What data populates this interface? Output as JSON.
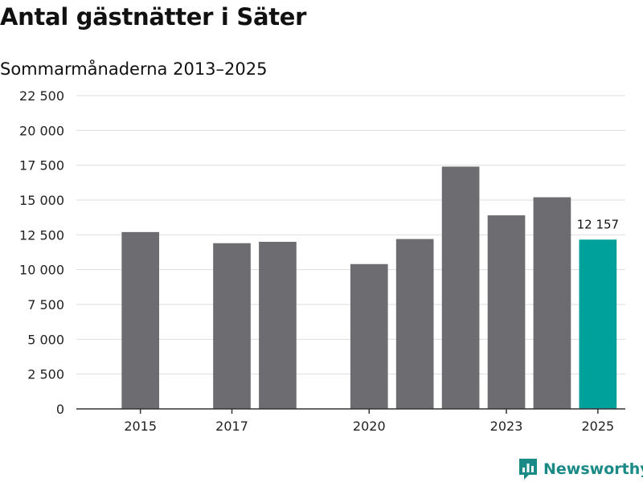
{
  "header": {
    "title": "Antal gästnätter i Säter",
    "subtitle": "Sommarmånaderna 2013–2025"
  },
  "logo": {
    "text": "Newsworthy",
    "icon": "bar-chart-speech-bubble-icon"
  },
  "colors": {
    "bar": "#6d6c71",
    "highlight": "#00a19a",
    "grid": "#dddddd",
    "axis": "#333333",
    "logo": "#1a8a86"
  },
  "chart_data": {
    "type": "bar",
    "title": "Antal gästnätter i Säter",
    "subtitle": "Sommarmånaderna 2013–2025",
    "xlabel": "",
    "ylabel": "",
    "ylim": [
      0,
      22500
    ],
    "yticks": [
      0,
      2500,
      5000,
      7500,
      10000,
      12500,
      15000,
      17500,
      20000,
      22500
    ],
    "ytick_labels": [
      "0",
      "2 500",
      "5 000",
      "7 500",
      "10 000",
      "12 500",
      "15 000",
      "17 500",
      "20 000",
      "22 500"
    ],
    "xlim": [
      2013.6,
      2025.6
    ],
    "xticks": [
      2015,
      2017,
      2020,
      2023,
      2025
    ],
    "xtick_labels": [
      "2015",
      "2017",
      "2020",
      "2023",
      "2025"
    ],
    "x": [
      2015,
      2017,
      2018,
      2020,
      2021,
      2022,
      2023,
      2024,
      2025
    ],
    "values": [
      12700,
      11900,
      12000,
      10400,
      12200,
      17400,
      13900,
      15200,
      12157
    ],
    "highlight_index": 8,
    "data_labels": [
      {
        "x": 2025,
        "text": "12 157"
      }
    ],
    "grid": true,
    "legend": "none"
  }
}
